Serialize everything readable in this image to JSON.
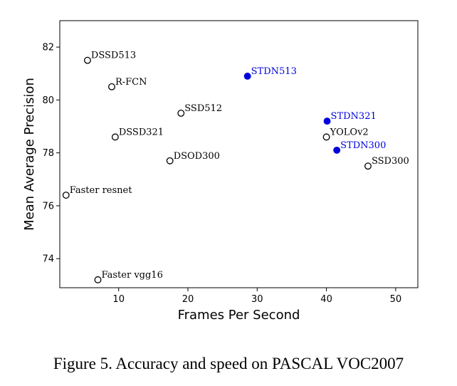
{
  "caption": "Figure 5. Accuracy and speed on PASCAL VOC2007",
  "colors": {
    "highlight": "#0000dd",
    "default": "#000000"
  },
  "chart_data": {
    "type": "scatter",
    "xlabel": "Frames Per Second",
    "ylabel": "Mean Average Precision",
    "xlim": [
      1.5,
      53.2
    ],
    "ylim": [
      72.9,
      83.0
    ],
    "xticks": [
      10,
      20,
      30,
      40,
      50
    ],
    "yticks": [
      74,
      76,
      78,
      80,
      82
    ],
    "grid": false,
    "points": [
      {
        "label": "DSSD513",
        "x": 5.5,
        "y": 81.5,
        "highlight": false
      },
      {
        "label": "R-FCN",
        "x": 9,
        "y": 80.5,
        "highlight": false
      },
      {
        "label": "SSD512",
        "x": 19,
        "y": 79.5,
        "highlight": false
      },
      {
        "label": "STDN513",
        "x": 28.6,
        "y": 80.9,
        "highlight": true
      },
      {
        "label": "DSSD321",
        "x": 9.5,
        "y": 78.6,
        "highlight": false
      },
      {
        "label": "DSOD300",
        "x": 17.4,
        "y": 77.7,
        "highlight": false
      },
      {
        "label": "STDN321",
        "x": 40.1,
        "y": 79.2,
        "highlight": true
      },
      {
        "label": "YOLOv2",
        "x": 40,
        "y": 78.6,
        "highlight": false
      },
      {
        "label": "STDN300",
        "x": 41.5,
        "y": 78.1,
        "highlight": true
      },
      {
        "label": "SSD300",
        "x": 46,
        "y": 77.5,
        "highlight": false
      },
      {
        "label": "Faster resnet",
        "x": 2.4,
        "y": 76.4,
        "highlight": false
      },
      {
        "label": "Faster vgg16",
        "x": 7,
        "y": 73.2,
        "highlight": false
      }
    ]
  }
}
